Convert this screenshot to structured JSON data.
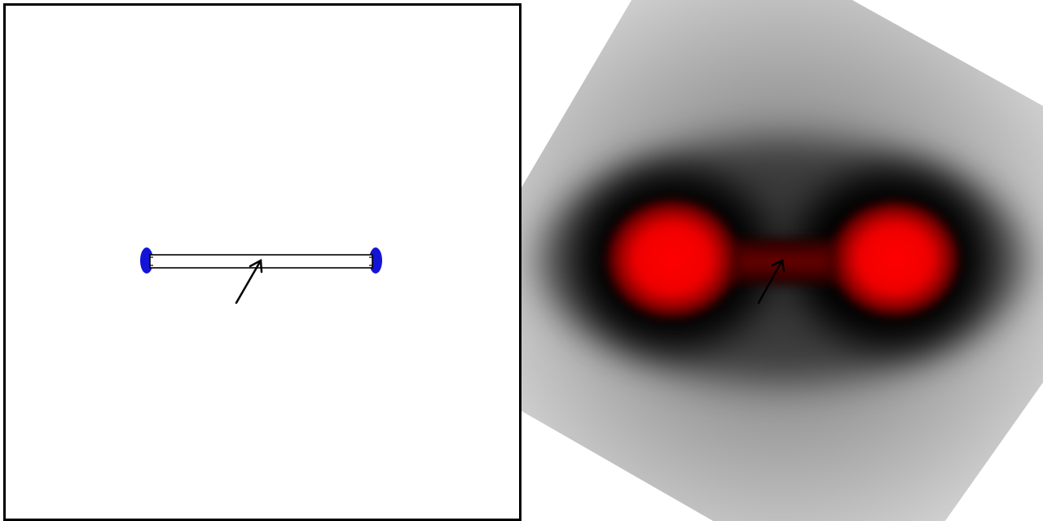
{
  "scene": {
    "left_view": {
      "description_label": "",
      "background_color": "#ffffff",
      "frame_color": "#000000",
      "rod_color": "#ffffff",
      "rod_outline_color": "#000000",
      "end_cap_color": "#1414d8",
      "arrow_color": "#000000"
    },
    "right_view": {
      "field_hot_color": "#ff0000",
      "field_dark_color": "#000000",
      "field_far_color": "#d8d8d8",
      "arrow_color": "#000000"
    }
  }
}
